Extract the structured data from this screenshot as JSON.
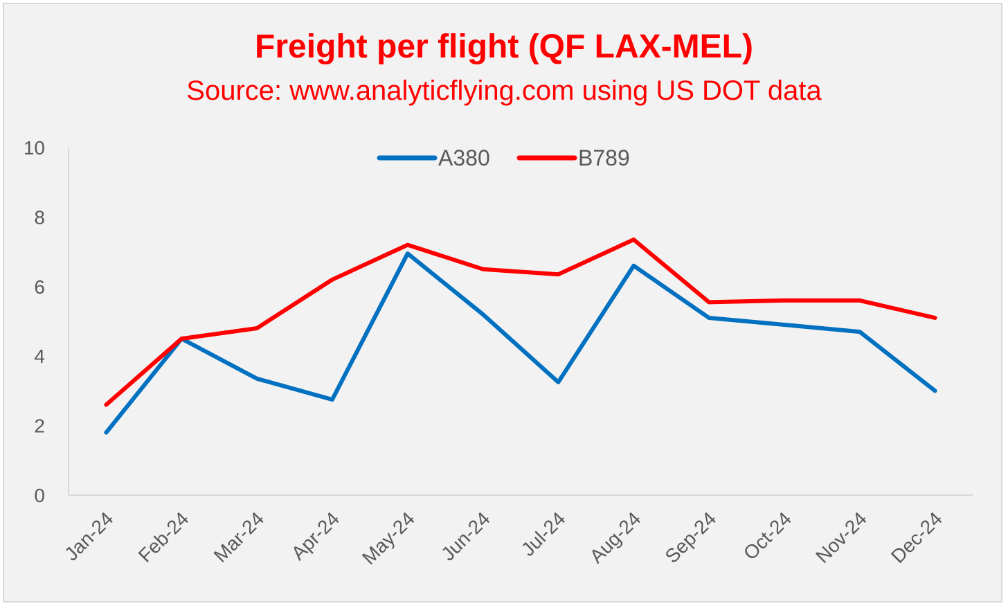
{
  "chart_data": {
    "type": "line",
    "title": "Freight per flight (QF LAX-MEL)",
    "subtitle": "Source: www.analyticflying.com using US DOT data",
    "categories": [
      "Jan-24",
      "Feb-24",
      "Mar-24",
      "Apr-24",
      "May-24",
      "Jun-24",
      "Jul-24",
      "Aug-24",
      "Sep-24",
      "Oct-24",
      "Nov-24",
      "Dec-24"
    ],
    "series": [
      {
        "name": "A380",
        "color": "#0070c0",
        "values": [
          1.8,
          4.5,
          3.35,
          2.75,
          6.95,
          5.2,
          3.25,
          6.6,
          5.1,
          4.9,
          4.7,
          3.0
        ]
      },
      {
        "name": "B789",
        "color": "#ff0000",
        "values": [
          2.6,
          4.5,
          4.8,
          6.2,
          7.2,
          6.5,
          6.35,
          7.35,
          5.55,
          5.6,
          5.6,
          5.1
        ]
      }
    ],
    "ylim": [
      0,
      10
    ],
    "yticks": [
      0,
      2,
      4,
      6,
      8,
      10
    ],
    "grid": false,
    "legend": "top-center"
  }
}
